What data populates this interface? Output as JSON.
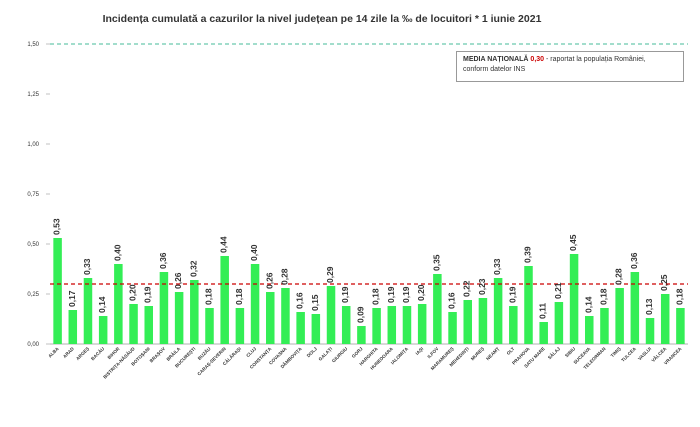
{
  "chart_data": {
    "type": "bar",
    "title": "Incidența cumulată a cazurilor la nivel județean pe 14 zile la ‰ de locuitori *  1 iunie 2021",
    "categories": [
      "ALBA",
      "ARAD",
      "ARGEȘ",
      "BACĂU",
      "BIHOR",
      "BISTRIȚA-NĂSĂUD",
      "BOTOȘANI",
      "BRAȘOV",
      "BRĂILA",
      "BUCUREȘTI",
      "BUZĂU",
      "CARAȘ-SEVERIN",
      "CĂLĂRAȘI",
      "CLUJ",
      "CONSTANȚA",
      "COVASNA",
      "DÂMBOVIȚA",
      "DOLJ",
      "GALAȚI",
      "GIURGIU",
      "GORJ",
      "HARGHITA",
      "HUNEDOARA",
      "IALOMIȚA",
      "IAȘI",
      "ILFOV",
      "MARAMUREȘ",
      "MEHEDINȚI",
      "MUREȘ",
      "NEAMȚ",
      "OLT",
      "PRAHOVA",
      "SATU MARE",
      "SĂLAJ",
      "SIBIU",
      "SUCEAVA",
      "TELEORMAN",
      "TIMIȘ",
      "TULCEA",
      "VASLUI",
      "VÂLCEA",
      "VRANCEA"
    ],
    "values": [
      0.53,
      0.17,
      0.33,
      0.14,
      0.4,
      0.2,
      0.19,
      0.36,
      0.26,
      0.32,
      0.18,
      0.44,
      0.18,
      0.4,
      0.26,
      0.28,
      0.16,
      0.15,
      0.29,
      0.19,
      0.09,
      0.18,
      0.19,
      0.19,
      0.2,
      0.35,
      0.16,
      0.22,
      0.23,
      0.33,
      0.19,
      0.39,
      0.11,
      0.21,
      0.45,
      0.14,
      0.18,
      0.28,
      0.36,
      0.13,
      0.25,
      0.18
    ],
    "value_labels": [
      "0,53",
      "0,17",
      "0,33",
      "0,14",
      "0,40",
      "0,20",
      "0,19",
      "0,36",
      "0,26",
      "0,32",
      "0,18",
      "0,44",
      "0,18",
      "0,40",
      "0,26",
      "0,28",
      "0,16",
      "0,15",
      "0,29",
      "0,19",
      "0,09",
      "0,18",
      "0,19",
      "0,19",
      "0,20",
      "0,35",
      "0,16",
      "0,22",
      "0,23",
      "0,33",
      "0,19",
      "0,39",
      "0,11",
      "0,21",
      "0,45",
      "0,14",
      "0,18",
      "0,28",
      "0,36",
      "0,13",
      "0,25",
      "0,18"
    ],
    "yticks": [
      0,
      0.25,
      0.5,
      0.75,
      1.0,
      1.25,
      1.5
    ],
    "ytick_labels": [
      "0,00",
      "0,25",
      "0,50",
      "0,75",
      "1,00",
      "1,25",
      "1,50"
    ],
    "ylim": [
      0,
      1.5
    ],
    "national_average": 0.3,
    "threshold": 1.5,
    "colors": {
      "bar": "#33ee55",
      "average_line": "#cc0000",
      "threshold_line": "#44bb99",
      "axis": "#999999",
      "text": "#333333"
    },
    "grid": false
  },
  "note": {
    "head": "MEDIA NAȚIONALĂ",
    "value": "0,30",
    "tail": " - raportat la populația României,",
    "line2": "conform datelor INS"
  }
}
